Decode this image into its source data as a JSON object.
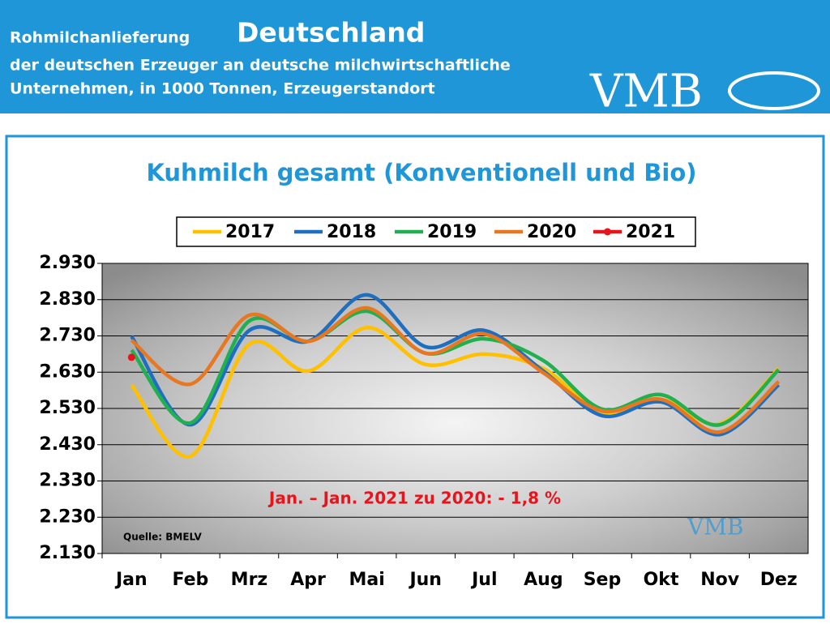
{
  "header": {
    "title_prefix": "Rohmilchanlieferung",
    "title_main": "Deutschland",
    "subtitle_line1": "der deutschen Erzeuger an deutsche milchwirtschaftliche",
    "subtitle_line2": "Unternehmen, in 1000 Tonnen, Erzeugerstandort",
    "logo": "VMB"
  },
  "chart_data": {
    "type": "line",
    "title": "Kuhmilch gesamt (Konventionell und Bio)",
    "categories": [
      "Jan",
      "Feb",
      "Mrz",
      "Apr",
      "Mai",
      "Jun",
      "Jul",
      "Aug",
      "Sep",
      "Okt",
      "Nov",
      "Dez"
    ],
    "series": [
      {
        "name": "2017",
        "color": "#ffc000",
        "values": [
          2595,
          2398,
          2707,
          2633,
          2753,
          2651,
          2680,
          2640,
          2521,
          2555,
          2488,
          2640
        ]
      },
      {
        "name": "2018",
        "color": "#1f6fc0",
        "values": [
          2729,
          2485,
          2745,
          2715,
          2843,
          2700,
          2745,
          2633,
          2510,
          2548,
          2458,
          2595
        ]
      },
      {
        "name": "2019",
        "color": "#20b050",
        "values": [
          2691,
          2490,
          2771,
          2715,
          2798,
          2682,
          2722,
          2662,
          2528,
          2568,
          2485,
          2637
        ]
      },
      {
        "name": "2020",
        "color": "#e87722",
        "values": [
          2718,
          2597,
          2787,
          2715,
          2807,
          2682,
          2735,
          2628,
          2523,
          2555,
          2465,
          2604
        ]
      },
      {
        "name": "2021",
        "color": "#e8141c",
        "marker": true,
        "values": [
          2671,
          null,
          null,
          null,
          null,
          null,
          null,
          null,
          null,
          null,
          null,
          null
        ]
      }
    ],
    "ylim": [
      2130,
      2930
    ],
    "yticks": [
      {
        "value": 2930,
        "label": "2.930"
      },
      {
        "value": 2830,
        "label": "2.830"
      },
      {
        "value": 2730,
        "label": "2.730"
      },
      {
        "value": 2630,
        "label": "2.630"
      },
      {
        "value": 2530,
        "label": "2.530"
      },
      {
        "value": 2430,
        "label": "2.430"
      },
      {
        "value": 2330,
        "label": "2.330"
      },
      {
        "value": 2230,
        "label": "2.230"
      },
      {
        "value": 2130,
        "label": "2.130"
      }
    ],
    "grid": true,
    "annotation": "Jan. – Jan. 2021 zu 2020: - 1,8 %",
    "source": "Quelle: BMELV",
    "watermark": "VMB"
  }
}
